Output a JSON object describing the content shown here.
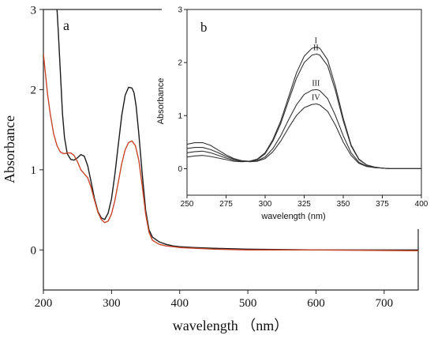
{
  "chart_data": [
    {
      "type": "line",
      "panel_label": "a",
      "xlabel": "wavelength  （nm）",
      "ylabel": "Absorbance",
      "xlim": [
        200,
        750
      ],
      "ylim": [
        -0.5,
        3
      ],
      "xticks": [
        200,
        300,
        400,
        500,
        600,
        700
      ],
      "yticks": [
        0,
        1,
        2,
        3
      ],
      "xtick_labels": [
        "200",
        "300",
        "400",
        "500",
        "600",
        "700"
      ],
      "ytick_labels": [
        "0",
        "1",
        "2",
        "3"
      ],
      "grid": false,
      "series": [
        {
          "color": "#1a1a1a",
          "x": [
            220,
            222,
            225,
            228,
            231,
            235,
            240,
            245,
            250,
            255,
            260,
            265,
            270,
            275,
            280,
            285,
            290,
            295,
            300,
            305,
            310,
            315,
            320,
            325,
            330,
            333,
            336,
            340,
            345,
            350,
            355,
            360,
            370,
            380,
            390,
            400,
            420,
            450,
            500,
            600,
            750
          ],
          "y": [
            3.0,
            2.7,
            2.2,
            1.7,
            1.4,
            1.2,
            1.13,
            1.12,
            1.15,
            1.19,
            1.17,
            1.05,
            0.85,
            0.64,
            0.48,
            0.4,
            0.38,
            0.46,
            0.64,
            0.95,
            1.32,
            1.68,
            1.93,
            2.03,
            2.02,
            1.96,
            1.8,
            1.45,
            0.95,
            0.5,
            0.25,
            0.16,
            0.1,
            0.07,
            0.05,
            0.04,
            0.03,
            0.02,
            0.01,
            0.0,
            0.0
          ]
        },
        {
          "color": "#c8452a",
          "x": [
            200,
            203,
            206,
            210,
            215,
            220,
            225,
            230,
            235,
            240,
            245,
            250,
            255,
            260,
            265,
            270,
            275,
            280,
            285,
            290,
            295,
            300,
            305,
            310,
            315,
            320,
            325,
            330,
            335,
            340,
            345,
            350,
            355,
            360,
            370,
            380,
            400,
            450,
            500,
            600,
            750
          ],
          "y": [
            2.45,
            2.2,
            1.95,
            1.7,
            1.45,
            1.3,
            1.22,
            1.2,
            1.21,
            1.21,
            1.18,
            1.1,
            1.0,
            0.95,
            0.9,
            0.78,
            0.62,
            0.47,
            0.38,
            0.34,
            0.36,
            0.45,
            0.62,
            0.85,
            1.08,
            1.25,
            1.34,
            1.36,
            1.3,
            1.12,
            0.8,
            0.45,
            0.22,
            0.12,
            0.07,
            0.05,
            0.03,
            0.01,
            0.0,
            0.0,
            -0.01
          ]
        }
      ]
    },
    {
      "type": "line",
      "panel_label": "b",
      "xlabel": "wavelength (nm)",
      "ylabel": "Absorbance",
      "xlim": [
        250,
        400
      ],
      "ylim": [
        -0.5,
        3
      ],
      "xticks": [
        250,
        275,
        300,
        325,
        350,
        375,
        400
      ],
      "yticks": [
        0,
        1,
        2,
        3
      ],
      "xtick_labels": [
        "250",
        "275",
        "300",
        "325",
        "350",
        "375",
        "400"
      ],
      "ytick_labels": [
        "0",
        "1",
        "2",
        "3"
      ],
      "grid": false,
      "series": [
        {
          "name": "I",
          "color": "#333333",
          "x": [
            250,
            255,
            260,
            265,
            270,
            275,
            280,
            285,
            290,
            295,
            300,
            305,
            310,
            315,
            320,
            325,
            330,
            333,
            335,
            340,
            345,
            350,
            355,
            360,
            365,
            370,
            375,
            380,
            390,
            400
          ],
          "y": [
            0.22,
            0.24,
            0.25,
            0.23,
            0.2,
            0.17,
            0.14,
            0.13,
            0.14,
            0.18,
            0.3,
            0.55,
            0.9,
            1.35,
            1.8,
            2.12,
            2.27,
            2.29,
            2.27,
            2.05,
            1.55,
            0.95,
            0.45,
            0.18,
            0.07,
            0.03,
            0.01,
            0.0,
            0.0,
            0.0
          ]
        },
        {
          "name": "II",
          "color": "#333333",
          "x": [
            250,
            255,
            260,
            265,
            270,
            275,
            280,
            285,
            290,
            295,
            300,
            305,
            310,
            315,
            320,
            325,
            330,
            333,
            335,
            340,
            345,
            350,
            355,
            360,
            365,
            370,
            375,
            380,
            390,
            400
          ],
          "y": [
            0.3,
            0.32,
            0.33,
            0.3,
            0.25,
            0.2,
            0.16,
            0.14,
            0.14,
            0.17,
            0.28,
            0.52,
            0.85,
            1.28,
            1.7,
            2.0,
            2.14,
            2.16,
            2.14,
            1.94,
            1.47,
            0.9,
            0.43,
            0.17,
            0.07,
            0.03,
            0.01,
            0.0,
            0.0,
            0.0
          ]
        },
        {
          "name": "III",
          "color": "#333333",
          "x": [
            250,
            255,
            260,
            265,
            270,
            275,
            280,
            285,
            290,
            295,
            300,
            305,
            310,
            315,
            320,
            325,
            330,
            333,
            335,
            340,
            345,
            350,
            355,
            360,
            365,
            370,
            375,
            380,
            390,
            400
          ],
          "y": [
            0.38,
            0.4,
            0.4,
            0.36,
            0.3,
            0.23,
            0.18,
            0.15,
            0.14,
            0.15,
            0.22,
            0.38,
            0.62,
            0.92,
            1.2,
            1.4,
            1.48,
            1.49,
            1.47,
            1.32,
            1.0,
            0.62,
            0.3,
            0.12,
            0.05,
            0.02,
            0.01,
            0.0,
            0.0,
            0.0
          ]
        },
        {
          "name": "IV",
          "color": "#333333",
          "x": [
            250,
            255,
            260,
            265,
            270,
            275,
            280,
            285,
            290,
            295,
            300,
            305,
            310,
            315,
            320,
            325,
            330,
            333,
            335,
            340,
            345,
            350,
            355,
            360,
            365,
            370,
            375,
            380,
            390,
            400
          ],
          "y": [
            0.46,
            0.49,
            0.49,
            0.44,
            0.35,
            0.26,
            0.19,
            0.15,
            0.13,
            0.14,
            0.19,
            0.32,
            0.52,
            0.77,
            1.0,
            1.15,
            1.21,
            1.22,
            1.2,
            1.08,
            0.82,
            0.5,
            0.25,
            0.1,
            0.04,
            0.02,
            0.01,
            0.0,
            0.0,
            0.0
          ]
        }
      ]
    }
  ]
}
